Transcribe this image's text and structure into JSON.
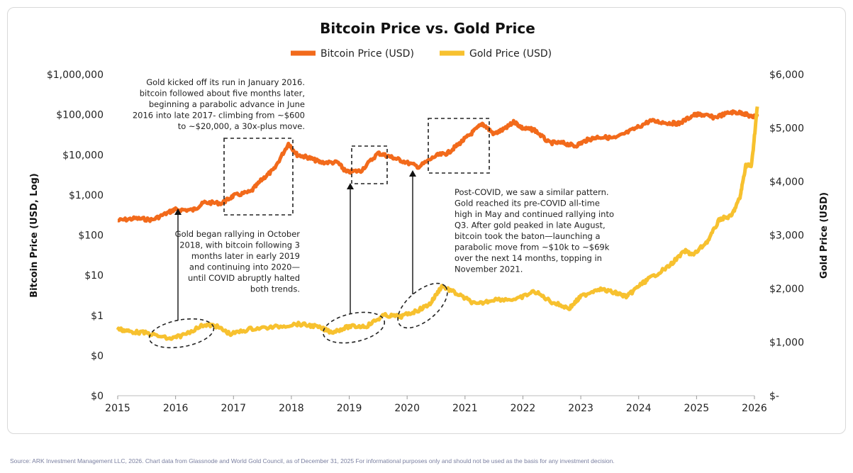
{
  "chart_data": {
    "type": "line",
    "title": "Bitcoin Price vs. Gold Price",
    "legend": {
      "placement": "top-center",
      "entries": [
        "Bitcoin Price (USD)",
        "Gold Price (USD)"
      ]
    },
    "xlabel": "",
    "ylabel_left": "Bitcoin Price (USD, Log)",
    "ylabel_right": "Gold Price (USD)",
    "xlim": [
      2015,
      2026.1
    ],
    "x_ticks": [
      "2015",
      "2016",
      "2017",
      "2018",
      "2019",
      "2020",
      "2021",
      "2022",
      "2023",
      "2024",
      "2025",
      "2026"
    ],
    "y_left_log_range": [
      0.01,
      1000000
    ],
    "y_left_ticks": [
      "$0",
      "$0",
      "$1",
      "$10",
      "$100",
      "$1,000",
      "$10,000",
      "$100,000",
      "$1,000,000"
    ],
    "y_right_range": [
      0,
      6000
    ],
    "y_right_ticks": [
      "$-",
      "$1,000",
      "$2,000",
      "$3,000",
      "$4,000",
      "$5,000",
      "$6,000"
    ],
    "colors": {
      "bitcoin": "#f26a1b",
      "gold": "#f7c12f"
    },
    "series": [
      {
        "name": "Bitcoin Price (USD)",
        "axis": "left",
        "x": [
          2015.0,
          2015.3,
          2015.6,
          2015.9,
          2016.0,
          2016.3,
          2016.5,
          2016.8,
          2017.0,
          2017.3,
          2017.5,
          2017.7,
          2017.95,
          2018.1,
          2018.3,
          2018.5,
          2018.8,
          2018.95,
          2019.2,
          2019.5,
          2019.7,
          2019.9,
          2020.2,
          2020.5,
          2020.7,
          2020.9,
          2021.1,
          2021.3,
          2021.5,
          2021.7,
          2021.85,
          2022.0,
          2022.2,
          2022.45,
          2022.7,
          2022.9,
          2023.1,
          2023.3,
          2023.6,
          2023.9,
          2024.2,
          2024.5,
          2024.7,
          2024.95,
          2025.1,
          2025.3,
          2025.6,
          2025.8,
          2025.95,
          2026.05
        ],
        "values": [
          230,
          260,
          240,
          380,
          430,
          420,
          650,
          620,
          950,
          1200,
          2500,
          4300,
          19000,
          10000,
          8500,
          6500,
          6400,
          3700,
          4000,
          11000,
          9000,
          7200,
          5000,
          9500,
          11000,
          19000,
          33000,
          60000,
          33000,
          45000,
          67000,
          45000,
          42000,
          20000,
          19500,
          16500,
          23000,
          28000,
          26000,
          42000,
          70000,
          62000,
          60000,
          98000,
          100000,
          85000,
          115000,
          110000,
          88000,
          92000
        ]
      },
      {
        "name": "Gold Price (USD)",
        "axis": "right",
        "x": [
          2015.0,
          2015.2,
          2015.5,
          2015.9,
          2016.1,
          2016.5,
          2016.7,
          2016.95,
          2017.3,
          2017.7,
          2018.1,
          2018.4,
          2018.7,
          2019.0,
          2019.3,
          2019.6,
          2019.9,
          2020.2,
          2020.4,
          2020.6,
          2020.9,
          2021.2,
          2021.5,
          2021.9,
          2022.2,
          2022.5,
          2022.8,
          2023.0,
          2023.3,
          2023.6,
          2023.8,
          2024.0,
          2024.2,
          2024.5,
          2024.8,
          2024.95,
          2025.2,
          2025.4,
          2025.6,
          2025.75,
          2025.85,
          2025.95,
          2026.05
        ],
        "values": [
          1250,
          1200,
          1170,
          1060,
          1120,
          1330,
          1300,
          1150,
          1250,
          1280,
          1340,
          1300,
          1190,
          1290,
          1300,
          1500,
          1480,
          1600,
          1720,
          2050,
          1880,
          1700,
          1800,
          1800,
          1950,
          1750,
          1630,
          1850,
          2000,
          1920,
          1850,
          2050,
          2200,
          2400,
          2700,
          2630,
          2900,
          3300,
          3350,
          3700,
          4300,
          4300,
          5400
        ]
      }
    ],
    "annotations": [
      {
        "id": "a1",
        "lines": [
          "Gold kicked off its run in January 2016.",
          "bitcoin followed about five months later,",
          "beginning a parabolic advance in June",
          "2016 into late 2017- climbing from ~$600",
          "to ~$20,000, a 30x-plus move."
        ]
      },
      {
        "id": "a2",
        "lines": [
          "Gold began rallying in October",
          "2018, with bitcoin following  3",
          "months later in early 2019",
          "and continuing into 2020—",
          "until COVID abruptly halted",
          "both trends."
        ]
      },
      {
        "id": "a3",
        "lines": [
          "Post-COVID, we saw a similar pattern.",
          "Gold reached its pre-COVID all-time",
          "high in May and continued rallying into",
          "Q3. After gold peaked in late August,",
          "bitcoin took the baton—launching a",
          "parabolic move from ~$10k to ~$69k",
          "over the next 14 months, topping in",
          "November 2021."
        ]
      }
    ]
  },
  "source": "Source: ARK Investment Management LLC, 2026. Chart data from Glassnode and World Gold Council, as of December 31, 2025 For informational purposes only and should not be used as the basis for any investment decision."
}
